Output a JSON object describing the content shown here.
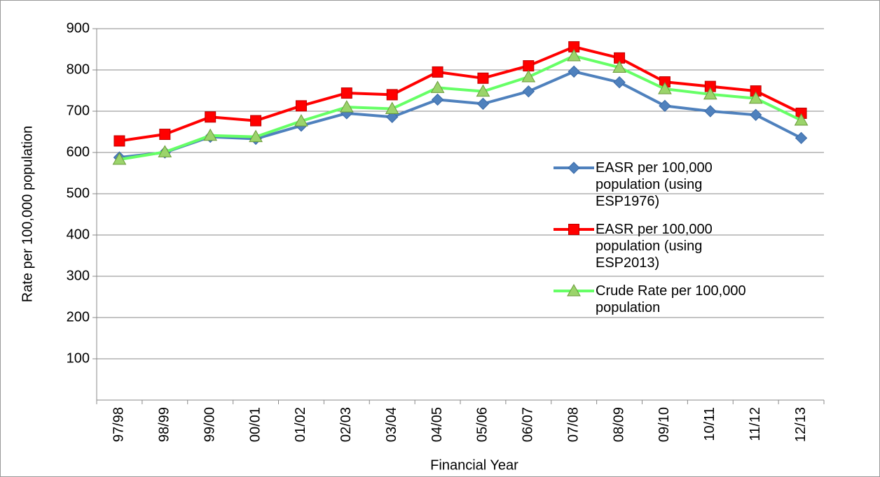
{
  "chart_data": {
    "type": "line",
    "x_label": "Financial Year",
    "y_label": "Rate per 100,000 population",
    "categories": [
      "97/98",
      "98/99",
      "99/00",
      "00/01",
      "01/02",
      "02/03",
      "03/04",
      "04/05",
      "05/06",
      "06/07",
      "07/08",
      "08/09",
      "09/10",
      "10/11",
      "11/12",
      "12/13"
    ],
    "series": [
      {
        "name": "EASR per 100,000 population (using ESP1976)",
        "color": "#4f81bd",
        "marker": "diamond",
        "values": [
          588,
          600,
          638,
          633,
          665,
          695,
          686,
          728,
          718,
          748,
          796,
          770,
          713,
          700,
          691,
          635
        ]
      },
      {
        "name": "EASR per 100,000 population (using ESP2013)",
        "color": "#ff0000",
        "marker": "square",
        "values": [
          628,
          644,
          686,
          677,
          713,
          744,
          740,
          795,
          780,
          810,
          856,
          829,
          771,
          760,
          749,
          695
        ]
      },
      {
        "name": "Crude Rate per 100,000 population",
        "color": "#66ff66",
        "marker": "triangle",
        "values": [
          583,
          601,
          641,
          638,
          676,
          710,
          706,
          757,
          748,
          783,
          834,
          806,
          754,
          741,
          731,
          678
        ]
      }
    ],
    "ylim": [
      0,
      900
    ],
    "yticks": [
      100,
      200,
      300,
      400,
      500,
      600,
      700,
      800,
      900
    ],
    "grid": true
  }
}
